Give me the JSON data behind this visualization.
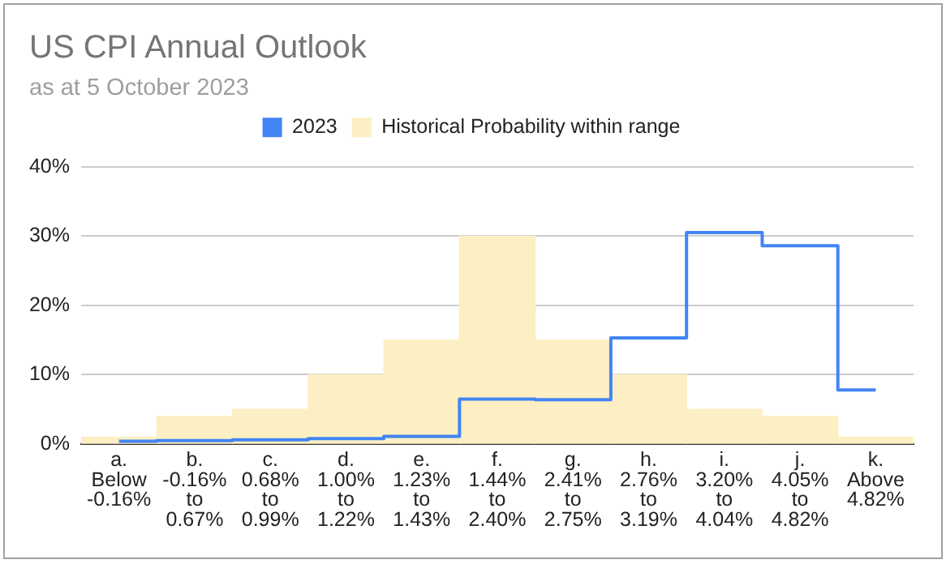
{
  "chart_data": {
    "type": "step",
    "title": "US CPI Annual Outlook",
    "subtitle": "as at 5 October 2023",
    "categories": [
      "a. Below -0.16%",
      "b. -0.16% to 0.67%",
      "c. 0.68% to 0.99%",
      "d. 1.00% to 1.22%",
      "e. 1.23% to 1.43%",
      "f. 1.44% to 2.40%",
      "g. 2.41% to 2.75%",
      "h. 2.76% to 3.19%",
      "i. 3.20% to 4.04%",
      "j. 4.05% to 4.82%",
      "k. Above 4.82%"
    ],
    "series": [
      {
        "name": "2023",
        "color": "#4285f4",
        "values": [
          0.4,
          0.5,
          0.6,
          0.8,
          1.1,
          6.5,
          6.4,
          15.3,
          30.5,
          28.6,
          7.8
        ]
      },
      {
        "name": "Historical Probability within range",
        "type": "bar",
        "color": "#fdefc4",
        "values": [
          1,
          4,
          5,
          10,
          15,
          30,
          15,
          10,
          5,
          4,
          1
        ]
      }
    ],
    "ylim": [
      0,
      40
    ],
    "yticks": [
      {
        "value": 0,
        "label": "0%"
      },
      {
        "value": 10,
        "label": "10%"
      },
      {
        "value": 20,
        "label": "20%"
      },
      {
        "value": 30,
        "label": "30%"
      },
      {
        "value": 40,
        "label": "40%"
      }
    ],
    "grid": "y",
    "legend": "top"
  }
}
